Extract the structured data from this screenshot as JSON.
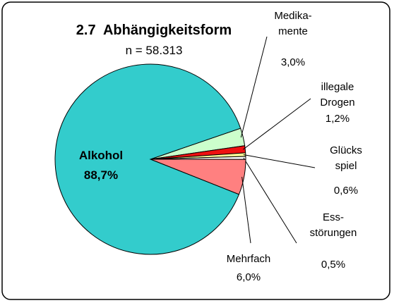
{
  "chart_data": {
    "type": "pie",
    "title": "2.7  Abhängigkeitsform",
    "subtitle": "n = 58.313",
    "categories": [
      "Medika-\nmente",
      "illegale\nDrogen",
      "Glücks\nspiel",
      "Ess-\nstörungen",
      "Mehrfach",
      "Alkohol"
    ],
    "values": [
      3.0,
      1.2,
      0.6,
      0.5,
      6.0,
      88.7
    ],
    "value_labels": [
      "3,0%",
      "1,2%",
      "0,6%",
      "0,5%",
      "6,0%",
      "88,7%"
    ],
    "colors": [
      "#ccffcc",
      "#ee1111",
      "#ffff99",
      "#ffffff",
      "#ff8080",
      "#33cccc"
    ]
  }
}
